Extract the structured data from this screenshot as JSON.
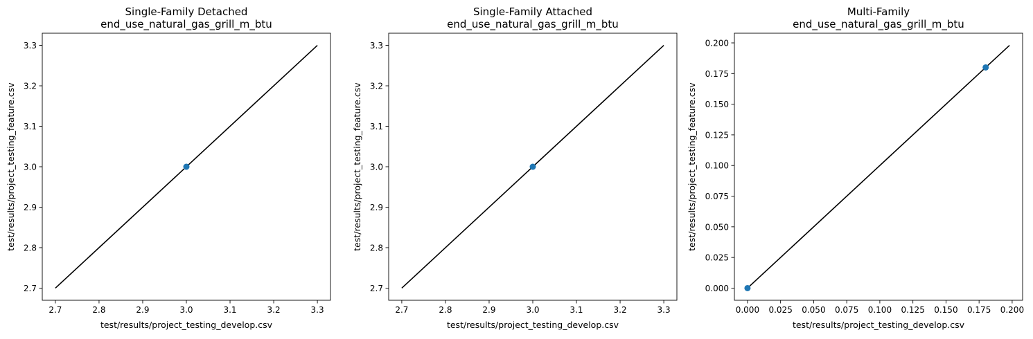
{
  "chart_data": [
    {
      "type": "scatter",
      "title": "Single-Family Detached",
      "subtitle": "end_use_natural_gas_grill_m_btu",
      "xlabel": "test/results/project_testing_develop.csv",
      "ylabel": "test/results/project_testing_feature.csv",
      "xlim": [
        2.67,
        3.33
      ],
      "ylim": [
        2.67,
        3.33
      ],
      "xticks": [
        2.7,
        2.8,
        2.9,
        3.0,
        3.1,
        3.2,
        3.3
      ],
      "xtick_labels": [
        "2.7",
        "2.8",
        "2.9",
        "3.0",
        "3.1",
        "3.2",
        "3.3"
      ],
      "yticks": [
        2.7,
        2.8,
        2.9,
        3.0,
        3.1,
        3.2,
        3.3
      ],
      "ytick_labels": [
        "2.7",
        "2.8",
        "2.9",
        "3.0",
        "3.1",
        "3.2",
        "3.3"
      ],
      "grid": false,
      "points": [
        {
          "x": 3.0,
          "y": 3.0
        }
      ],
      "reference_line": {
        "x": [
          2.7,
          3.3
        ],
        "y": [
          2.7,
          3.3
        ],
        "color": "#000000"
      },
      "point_color": "#1f77b4"
    },
    {
      "type": "scatter",
      "title": "Single-Family Attached",
      "subtitle": "end_use_natural_gas_grill_m_btu",
      "xlabel": "test/results/project_testing_develop.csv",
      "ylabel": "test/results/project_testing_feature.csv",
      "xlim": [
        2.67,
        3.33
      ],
      "ylim": [
        2.67,
        3.33
      ],
      "xticks": [
        2.7,
        2.8,
        2.9,
        3.0,
        3.1,
        3.2,
        3.3
      ],
      "xtick_labels": [
        "2.7",
        "2.8",
        "2.9",
        "3.0",
        "3.1",
        "3.2",
        "3.3"
      ],
      "yticks": [
        2.7,
        2.8,
        2.9,
        3.0,
        3.1,
        3.2,
        3.3
      ],
      "ytick_labels": [
        "2.7",
        "2.8",
        "2.9",
        "3.0",
        "3.1",
        "3.2",
        "3.3"
      ],
      "grid": false,
      "points": [
        {
          "x": 3.0,
          "y": 3.0
        }
      ],
      "reference_line": {
        "x": [
          2.7,
          3.3
        ],
        "y": [
          2.7,
          3.3
        ],
        "color": "#000000"
      },
      "point_color": "#1f77b4"
    },
    {
      "type": "scatter",
      "title": "Multi-Family",
      "subtitle": "end_use_natural_gas_grill_m_btu",
      "xlabel": "test/results/project_testing_develop.csv",
      "ylabel": "test/results/project_testing_feature.csv",
      "xlim": [
        -0.0099,
        0.2079
      ],
      "ylim": [
        -0.0099,
        0.2079
      ],
      "xticks": [
        0.0,
        0.025,
        0.05,
        0.075,
        0.1,
        0.125,
        0.15,
        0.175,
        0.2
      ],
      "xtick_labels": [
        "0.000",
        "0.025",
        "0.050",
        "0.075",
        "0.100",
        "0.125",
        "0.150",
        "0.175",
        "0.200"
      ],
      "yticks": [
        0.0,
        0.025,
        0.05,
        0.075,
        0.1,
        0.125,
        0.15,
        0.175,
        0.2
      ],
      "ytick_labels": [
        "0.000",
        "0.025",
        "0.050",
        "0.075",
        "0.100",
        "0.125",
        "0.150",
        "0.175",
        "0.200"
      ],
      "grid": false,
      "points": [
        {
          "x": 0.0,
          "y": 0.0
        },
        {
          "x": 0.18,
          "y": 0.18
        }
      ],
      "reference_line": {
        "x": [
          0.0,
          0.198
        ],
        "y": [
          0.0,
          0.198
        ],
        "color": "#000000"
      },
      "point_color": "#1f77b4"
    }
  ]
}
